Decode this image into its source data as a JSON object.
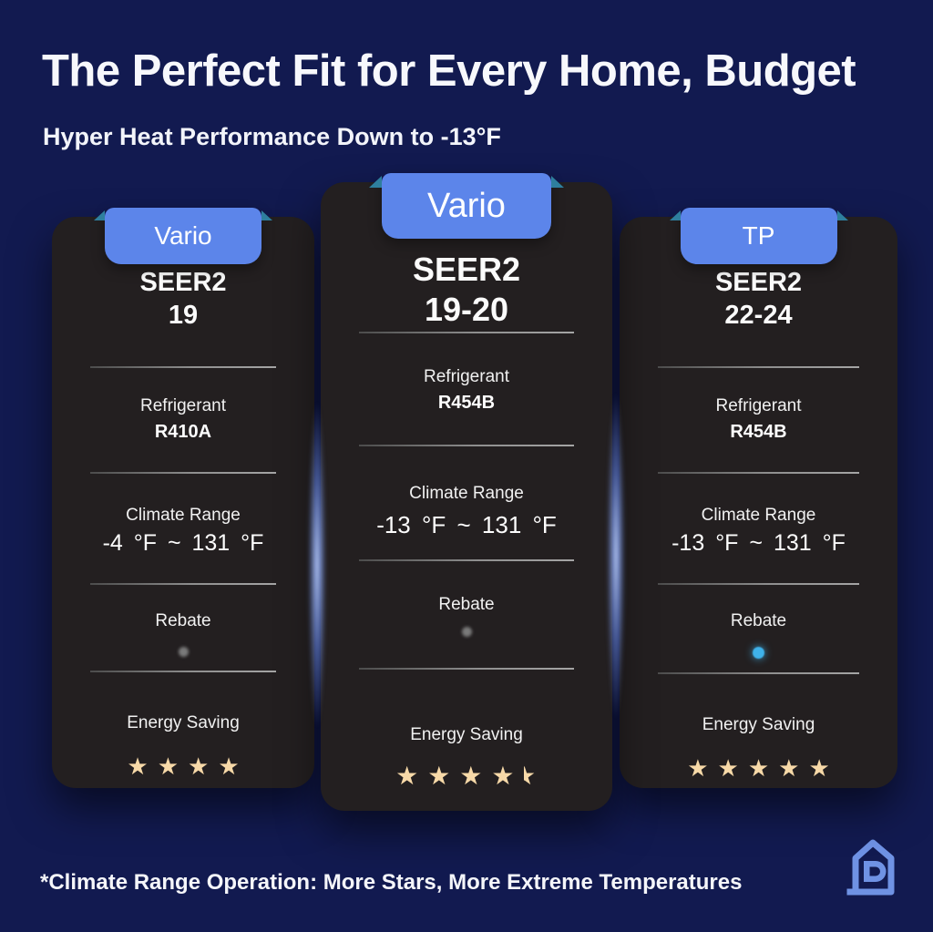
{
  "header": {
    "title": "The Perfect Fit for Every Home, Budget",
    "subtitle": "Hyper Heat Performance Down to -13°F"
  },
  "labels": {
    "seer": "SEER2",
    "refrigerant": "Refrigerant",
    "climate_range": "Climate Range",
    "rebate": "Rebate",
    "energy_saving": "Energy Saving"
  },
  "cards": [
    {
      "tab": "Vario",
      "seer_value": "19",
      "refrigerant": "R410A",
      "climate_range": "-4 °F ~ 131 °F",
      "rebate_dot": "gray",
      "stars": 4
    },
    {
      "tab": "Vario",
      "seer_value": "19-20",
      "refrigerant": "R454B",
      "climate_range": "-13 °F ~ 131 °F",
      "rebate_dot": "gray",
      "stars": 4.5
    },
    {
      "tab": "TP",
      "seer_value": "22-24",
      "refrigerant": "R454B",
      "climate_range": "-13 °F ~ 131 °F",
      "rebate_dot": "blue",
      "stars": 5
    }
  ],
  "footer": {
    "note": "*Climate Range Operation: More Stars, More Extreme Temperatures"
  },
  "icons": {
    "star_glyph": "★",
    "logo": "house-spiral-logo"
  },
  "colors": {
    "background": "#121a50",
    "card": "#231f20",
    "tab_blue": "#5c85ea",
    "ribbon_teal": "#2e7f9e",
    "star": "#f7d9a8",
    "rebate_gray": "#7a7a7a",
    "rebate_blue": "#3fb2ea",
    "logo_blue": "#6f92e4"
  }
}
